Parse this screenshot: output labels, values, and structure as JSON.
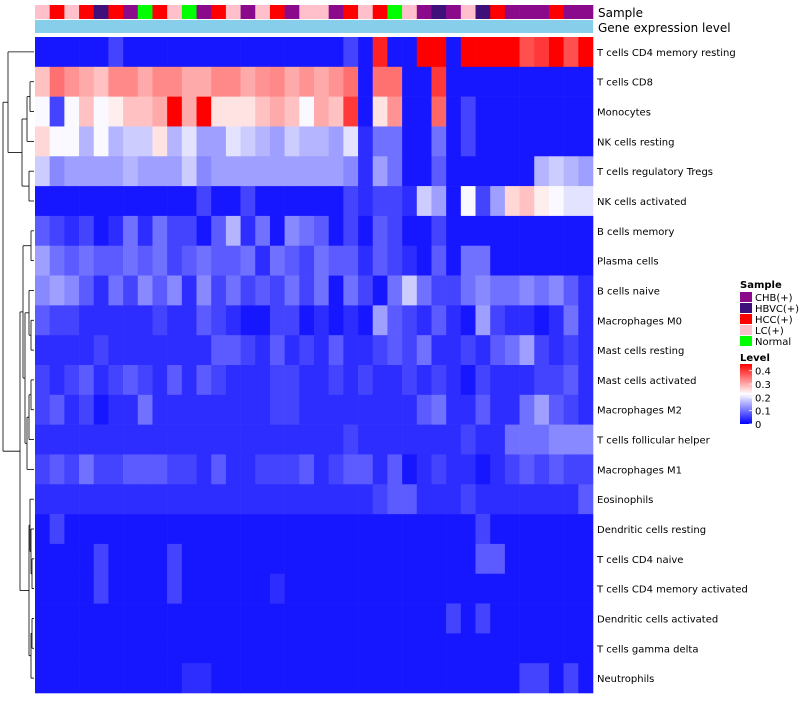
{
  "chart_data": {
    "type": "heatmap",
    "title": "",
    "annotation_tracks": [
      "Sample",
      "Gene expression level"
    ],
    "rows": [
      "T cells CD4 memory resting",
      "T cells CD8",
      "Monocytes",
      "NK cells resting",
      "T cells regulatory  Tregs",
      "NK cells activated",
      "B cells memory",
      "Plasma cells",
      "B cells naive",
      "Macrophages M0",
      "Mast cells resting",
      "Mast cells activated",
      "Macrophages M2",
      "T cells follicular helper",
      "Macrophages M1",
      "Eosinophils",
      "Dendritic cells resting",
      "T cells CD4 naive",
      "T cells CD4 memory activated",
      "Dendritic cells activated",
      "T cells gamma delta",
      "Neutrophils"
    ],
    "sample_groups": [
      "LC(+)",
      "HCC(+)",
      "LC(+)",
      "HCC(+)",
      "HBVC(+)",
      "HCC(+)",
      "CHB(+)",
      "Normal",
      "HCC(+)",
      "LC(+)",
      "Normal",
      "CHB(+)",
      "HCC(+)",
      "LC(+)",
      "CHB(+)",
      "LC(+)",
      "HCC(+)",
      "CHB(+)",
      "LC(+)",
      "LC(+)",
      "CHB(+)",
      "HCC(+)",
      "LC(+)",
      "HCC(+)",
      "Normal",
      "LC(+)",
      "CHB(+)",
      "HBVC(+)",
      "CHB(+)",
      "LC(+)",
      "HBVC(+)",
      "HCC(+)",
      "CHB(+)",
      "CHB(+)",
      "CHB(+)",
      "HCC(+)",
      "CHB(+)",
      "CHB(+)"
    ],
    "values": [
      [
        0.02,
        0.02,
        0.02,
        0.02,
        0.02,
        0.06,
        0.02,
        0.02,
        0.02,
        0.02,
        0.02,
        0.02,
        0.02,
        0.02,
        0.02,
        0.02,
        0.02,
        0.02,
        0.02,
        0.02,
        0.02,
        0.06,
        0.02,
        0.42,
        0.02,
        0.02,
        0.45,
        0.45,
        0.02,
        0.45,
        0.45,
        0.45,
        0.45,
        0.38,
        0.4,
        0.45,
        0.38,
        0.45
      ],
      [
        0.28,
        0.35,
        0.32,
        0.3,
        0.28,
        0.33,
        0.33,
        0.3,
        0.33,
        0.33,
        0.3,
        0.3,
        0.33,
        0.33,
        0.3,
        0.32,
        0.33,
        0.3,
        0.32,
        0.3,
        0.32,
        0.35,
        0.02,
        0.35,
        0.35,
        0.02,
        0.02,
        0.4,
        0.02,
        0.02,
        0.02,
        0.02,
        0.02,
        0.02,
        0.02,
        0.02,
        0.02,
        0.02
      ],
      [
        0.22,
        0.06,
        0.22,
        0.28,
        0.22,
        0.24,
        0.28,
        0.28,
        0.3,
        0.45,
        0.3,
        0.45,
        0.25,
        0.25,
        0.25,
        0.28,
        0.3,
        0.28,
        0.22,
        0.3,
        0.28,
        0.4,
        0.02,
        0.25,
        0.32,
        0.02,
        0.02,
        0.36,
        0.02,
        0.06,
        0.02,
        0.02,
        0.02,
        0.02,
        0.02,
        0.02,
        0.02,
        0.02
      ],
      [
        0.26,
        0.22,
        0.22,
        0.16,
        0.22,
        0.16,
        0.18,
        0.18,
        0.25,
        0.16,
        0.2,
        0.14,
        0.14,
        0.2,
        0.18,
        0.16,
        0.14,
        0.18,
        0.16,
        0.16,
        0.14,
        0.2,
        0.04,
        0.1,
        0.1,
        0.02,
        0.02,
        0.1,
        0.02,
        0.06,
        0.02,
        0.02,
        0.02,
        0.02,
        0.02,
        0.02,
        0.02,
        0.02
      ],
      [
        0.18,
        0.12,
        0.14,
        0.14,
        0.14,
        0.14,
        0.16,
        0.14,
        0.14,
        0.14,
        0.18,
        0.12,
        0.14,
        0.14,
        0.14,
        0.14,
        0.14,
        0.14,
        0.14,
        0.14,
        0.14,
        0.12,
        0.04,
        0.14,
        0.1,
        0.02,
        0.02,
        0.08,
        0.02,
        0.02,
        0.02,
        0.02,
        0.02,
        0.02,
        0.16,
        0.18,
        0.16,
        0.14
      ],
      [
        0.02,
        0.02,
        0.02,
        0.02,
        0.02,
        0.02,
        0.02,
        0.02,
        0.02,
        0.02,
        0.02,
        0.06,
        0.02,
        0.02,
        0.06,
        0.02,
        0.02,
        0.02,
        0.02,
        0.02,
        0.02,
        0.06,
        0.04,
        0.06,
        0.06,
        0.04,
        0.18,
        0.14,
        0.02,
        0.22,
        0.06,
        0.14,
        0.26,
        0.28,
        0.24,
        0.22,
        0.2,
        0.2
      ],
      [
        0.08,
        0.06,
        0.04,
        0.06,
        0.02,
        0.04,
        0.1,
        0.04,
        0.1,
        0.06,
        0.06,
        0.02,
        0.08,
        0.16,
        0.04,
        0.1,
        0.02,
        0.12,
        0.1,
        0.08,
        0.02,
        0.06,
        0.02,
        0.08,
        0.06,
        0.02,
        0.02,
        0.06,
        0.02,
        0.02,
        0.02,
        0.02,
        0.02,
        0.02,
        0.02,
        0.02,
        0.02,
        0.02
      ],
      [
        0.14,
        0.1,
        0.08,
        0.1,
        0.08,
        0.08,
        0.1,
        0.08,
        0.1,
        0.06,
        0.08,
        0.1,
        0.08,
        0.08,
        0.1,
        0.04,
        0.1,
        0.08,
        0.06,
        0.1,
        0.08,
        0.08,
        0.04,
        0.08,
        0.06,
        0.04,
        0.02,
        0.08,
        0.02,
        0.1,
        0.1,
        0.02,
        0.02,
        0.02,
        0.02,
        0.02,
        0.02,
        0.02
      ],
      [
        0.12,
        0.14,
        0.12,
        0.08,
        0.04,
        0.1,
        0.06,
        0.12,
        0.08,
        0.12,
        0.04,
        0.12,
        0.06,
        0.1,
        0.06,
        0.08,
        0.06,
        0.1,
        0.06,
        0.1,
        0.02,
        0.1,
        0.06,
        0.02,
        0.1,
        0.18,
        0.1,
        0.06,
        0.06,
        0.1,
        0.12,
        0.1,
        0.1,
        0.12,
        0.1,
        0.12,
        0.08,
        0.04
      ],
      [
        0.08,
        0.06,
        0.06,
        0.04,
        0.04,
        0.04,
        0.04,
        0.04,
        0.06,
        0.04,
        0.04,
        0.08,
        0.06,
        0.04,
        0.02,
        0.02,
        0.06,
        0.06,
        0.02,
        0.04,
        0.02,
        0.04,
        0.02,
        0.14,
        0.08,
        0.06,
        0.04,
        0.08,
        0.04,
        0.02,
        0.14,
        0.06,
        0.04,
        0.04,
        0.02,
        0.04,
        0.1,
        0.04
      ],
      [
        0.04,
        0.04,
        0.04,
        0.04,
        0.06,
        0.04,
        0.04,
        0.04,
        0.04,
        0.04,
        0.04,
        0.04,
        0.08,
        0.08,
        0.06,
        0.04,
        0.08,
        0.04,
        0.06,
        0.04,
        0.08,
        0.04,
        0.04,
        0.06,
        0.08,
        0.06,
        0.1,
        0.04,
        0.04,
        0.06,
        0.04,
        0.08,
        0.1,
        0.14,
        0.06,
        0.04,
        0.06,
        0.04
      ],
      [
        0.06,
        0.04,
        0.06,
        0.08,
        0.04,
        0.06,
        0.08,
        0.06,
        0.04,
        0.08,
        0.04,
        0.08,
        0.06,
        0.04,
        0.04,
        0.04,
        0.06,
        0.06,
        0.04,
        0.04,
        0.06,
        0.04,
        0.06,
        0.04,
        0.04,
        0.06,
        0.04,
        0.06,
        0.04,
        0.02,
        0.06,
        0.04,
        0.04,
        0.04,
        0.06,
        0.06,
        0.08,
        0.04
      ],
      [
        0.06,
        0.08,
        0.04,
        0.06,
        0.02,
        0.04,
        0.04,
        0.1,
        0.04,
        0.04,
        0.04,
        0.04,
        0.04,
        0.04,
        0.04,
        0.04,
        0.06,
        0.06,
        0.04,
        0.04,
        0.04,
        0.04,
        0.04,
        0.04,
        0.04,
        0.04,
        0.08,
        0.1,
        0.04,
        0.04,
        0.08,
        0.04,
        0.04,
        0.1,
        0.14,
        0.08,
        0.06,
        0.04
      ],
      [
        0.04,
        0.04,
        0.04,
        0.04,
        0.04,
        0.04,
        0.04,
        0.04,
        0.04,
        0.04,
        0.04,
        0.04,
        0.04,
        0.04,
        0.04,
        0.04,
        0.04,
        0.04,
        0.04,
        0.04,
        0.04,
        0.06,
        0.04,
        0.04,
        0.04,
        0.04,
        0.04,
        0.04,
        0.04,
        0.06,
        0.04,
        0.04,
        0.1,
        0.1,
        0.1,
        0.12,
        0.12,
        0.12
      ],
      [
        0.06,
        0.08,
        0.06,
        0.1,
        0.06,
        0.06,
        0.08,
        0.08,
        0.08,
        0.06,
        0.06,
        0.04,
        0.08,
        0.04,
        0.04,
        0.06,
        0.06,
        0.06,
        0.08,
        0.04,
        0.06,
        0.08,
        0.08,
        0.04,
        0.08,
        0.02,
        0.04,
        0.06,
        0.04,
        0.04,
        0.02,
        0.04,
        0.06,
        0.08,
        0.06,
        0.08,
        0.06,
        0.06
      ],
      [
        0.04,
        0.04,
        0.04,
        0.04,
        0.04,
        0.04,
        0.04,
        0.04,
        0.04,
        0.04,
        0.04,
        0.04,
        0.04,
        0.04,
        0.04,
        0.04,
        0.04,
        0.04,
        0.04,
        0.04,
        0.04,
        0.04,
        0.04,
        0.06,
        0.08,
        0.08,
        0.04,
        0.04,
        0.04,
        0.06,
        0.04,
        0.04,
        0.04,
        0.04,
        0.04,
        0.04,
        0.04,
        0.08
      ],
      [
        0.02,
        0.06,
        0.02,
        0.02,
        0.02,
        0.02,
        0.02,
        0.02,
        0.02,
        0.02,
        0.02,
        0.02,
        0.02,
        0.02,
        0.02,
        0.02,
        0.02,
        0.02,
        0.02,
        0.02,
        0.02,
        0.02,
        0.02,
        0.02,
        0.02,
        0.02,
        0.02,
        0.02,
        0.02,
        0.02,
        0.06,
        0.02,
        0.02,
        0.02,
        0.02,
        0.02,
        0.02,
        0.02
      ],
      [
        0.02,
        0.02,
        0.02,
        0.02,
        0.06,
        0.02,
        0.02,
        0.02,
        0.02,
        0.06,
        0.02,
        0.02,
        0.02,
        0.02,
        0.02,
        0.02,
        0.02,
        0.02,
        0.02,
        0.02,
        0.02,
        0.02,
        0.02,
        0.02,
        0.02,
        0.02,
        0.02,
        0.02,
        0.02,
        0.02,
        0.08,
        0.08,
        0.02,
        0.02,
        0.02,
        0.02,
        0.02,
        0.02
      ],
      [
        0.02,
        0.02,
        0.02,
        0.02,
        0.06,
        0.02,
        0.02,
        0.02,
        0.02,
        0.06,
        0.02,
        0.02,
        0.02,
        0.02,
        0.02,
        0.02,
        0.04,
        0.02,
        0.02,
        0.02,
        0.02,
        0.02,
        0.02,
        0.02,
        0.02,
        0.02,
        0.02,
        0.02,
        0.02,
        0.02,
        0.02,
        0.02,
        0.02,
        0.02,
        0.02,
        0.02,
        0.02,
        0.02
      ],
      [
        0.02,
        0.02,
        0.02,
        0.02,
        0.02,
        0.02,
        0.02,
        0.02,
        0.02,
        0.02,
        0.02,
        0.02,
        0.02,
        0.02,
        0.02,
        0.02,
        0.02,
        0.02,
        0.02,
        0.02,
        0.02,
        0.02,
        0.02,
        0.02,
        0.02,
        0.02,
        0.02,
        0.02,
        0.06,
        0.02,
        0.06,
        0.02,
        0.02,
        0.02,
        0.02,
        0.02,
        0.02,
        0.02
      ],
      [
        0.02,
        0.02,
        0.02,
        0.02,
        0.02,
        0.02,
        0.02,
        0.02,
        0.02,
        0.02,
        0.02,
        0.02,
        0.02,
        0.02,
        0.02,
        0.02,
        0.02,
        0.02,
        0.02,
        0.02,
        0.02,
        0.02,
        0.02,
        0.02,
        0.02,
        0.02,
        0.02,
        0.02,
        0.02,
        0.02,
        0.02,
        0.02,
        0.02,
        0.02,
        0.02,
        0.02,
        0.02,
        0.02
      ],
      [
        0.02,
        0.02,
        0.02,
        0.02,
        0.02,
        0.02,
        0.02,
        0.02,
        0.02,
        0.02,
        0.04,
        0.04,
        0.02,
        0.02,
        0.02,
        0.02,
        0.02,
        0.02,
        0.02,
        0.02,
        0.02,
        0.02,
        0.02,
        0.02,
        0.02,
        0.02,
        0.02,
        0.02,
        0.02,
        0.02,
        0.02,
        0.02,
        0.02,
        0.06,
        0.06,
        0.02,
        0.06,
        0.02
      ]
    ],
    "legend_sample": {
      "title": "Sample",
      "entries": [
        {
          "label": "CHB(+)",
          "color": "#8B0A8B"
        },
        {
          "label": "HBVC(+)",
          "color": "#3F0F7A"
        },
        {
          "label": "HCC(+)",
          "color": "#FF0000"
        },
        {
          "label": "LC(+)",
          "color": "#FFC0CB"
        },
        {
          "label": "Normal",
          "color": "#00FF00"
        }
      ]
    },
    "legend_level": {
      "title": "Level",
      "ticks": [
        "0.4",
        "0.3",
        "0.2",
        "0.1",
        "0"
      ],
      "range": [
        0,
        0.45
      ],
      "colors": {
        "low": "#0000FF",
        "mid": "#FFFFFF",
        "high": "#FF0000"
      }
    },
    "expression_track_color": "#87CEEB"
  }
}
